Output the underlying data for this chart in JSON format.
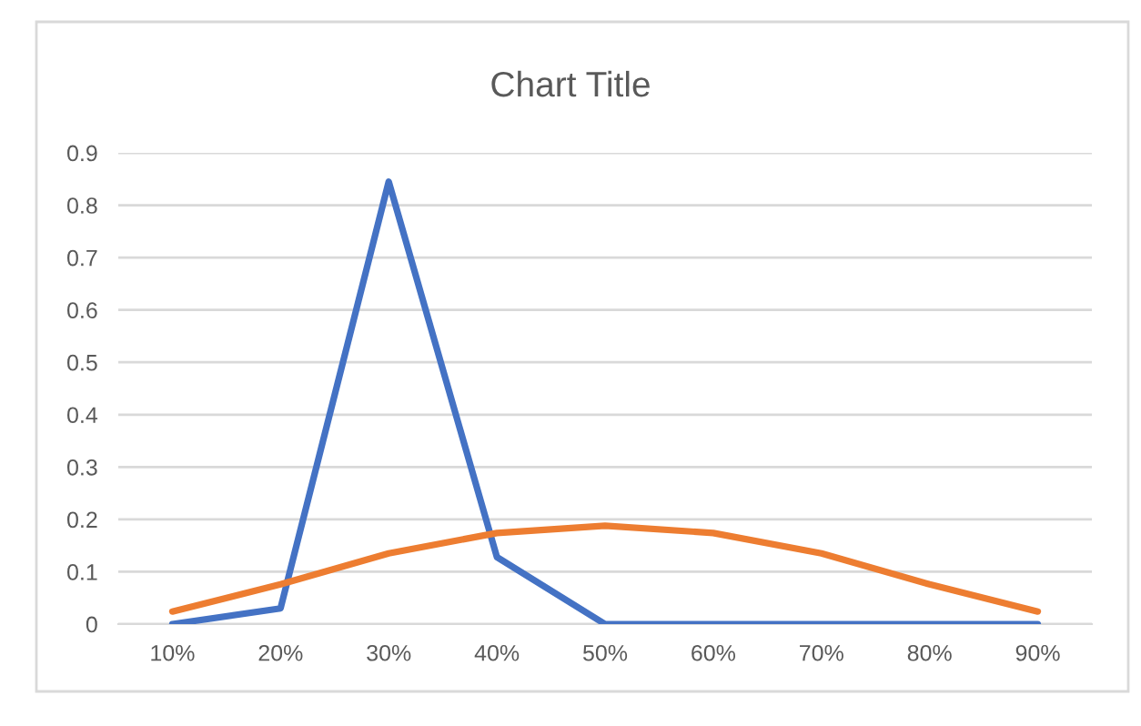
{
  "chart_data": {
    "type": "line",
    "title": "Chart Title",
    "categories": [
      "10%",
      "20%",
      "30%",
      "40%",
      "50%",
      "60%",
      "70%",
      "80%",
      "90%"
    ],
    "series": [
      {
        "color": "#4472c4",
        "values": [
          0,
          0.03,
          0.845,
          0.128,
          0,
          0,
          0,
          0,
          0
        ]
      },
      {
        "color": "#ed7d31",
        "values": [
          0.024,
          0.076,
          0.135,
          0.174,
          0.188,
          0.174,
          0.135,
          0.076,
          0.024
        ]
      }
    ],
    "ylim": [
      0,
      0.9
    ],
    "yticks": [
      0,
      0.1,
      0.2,
      0.3,
      0.4,
      0.5,
      0.6,
      0.7,
      0.8,
      0.9
    ],
    "grid": "y",
    "marker": "none",
    "line_style": "solid"
  }
}
